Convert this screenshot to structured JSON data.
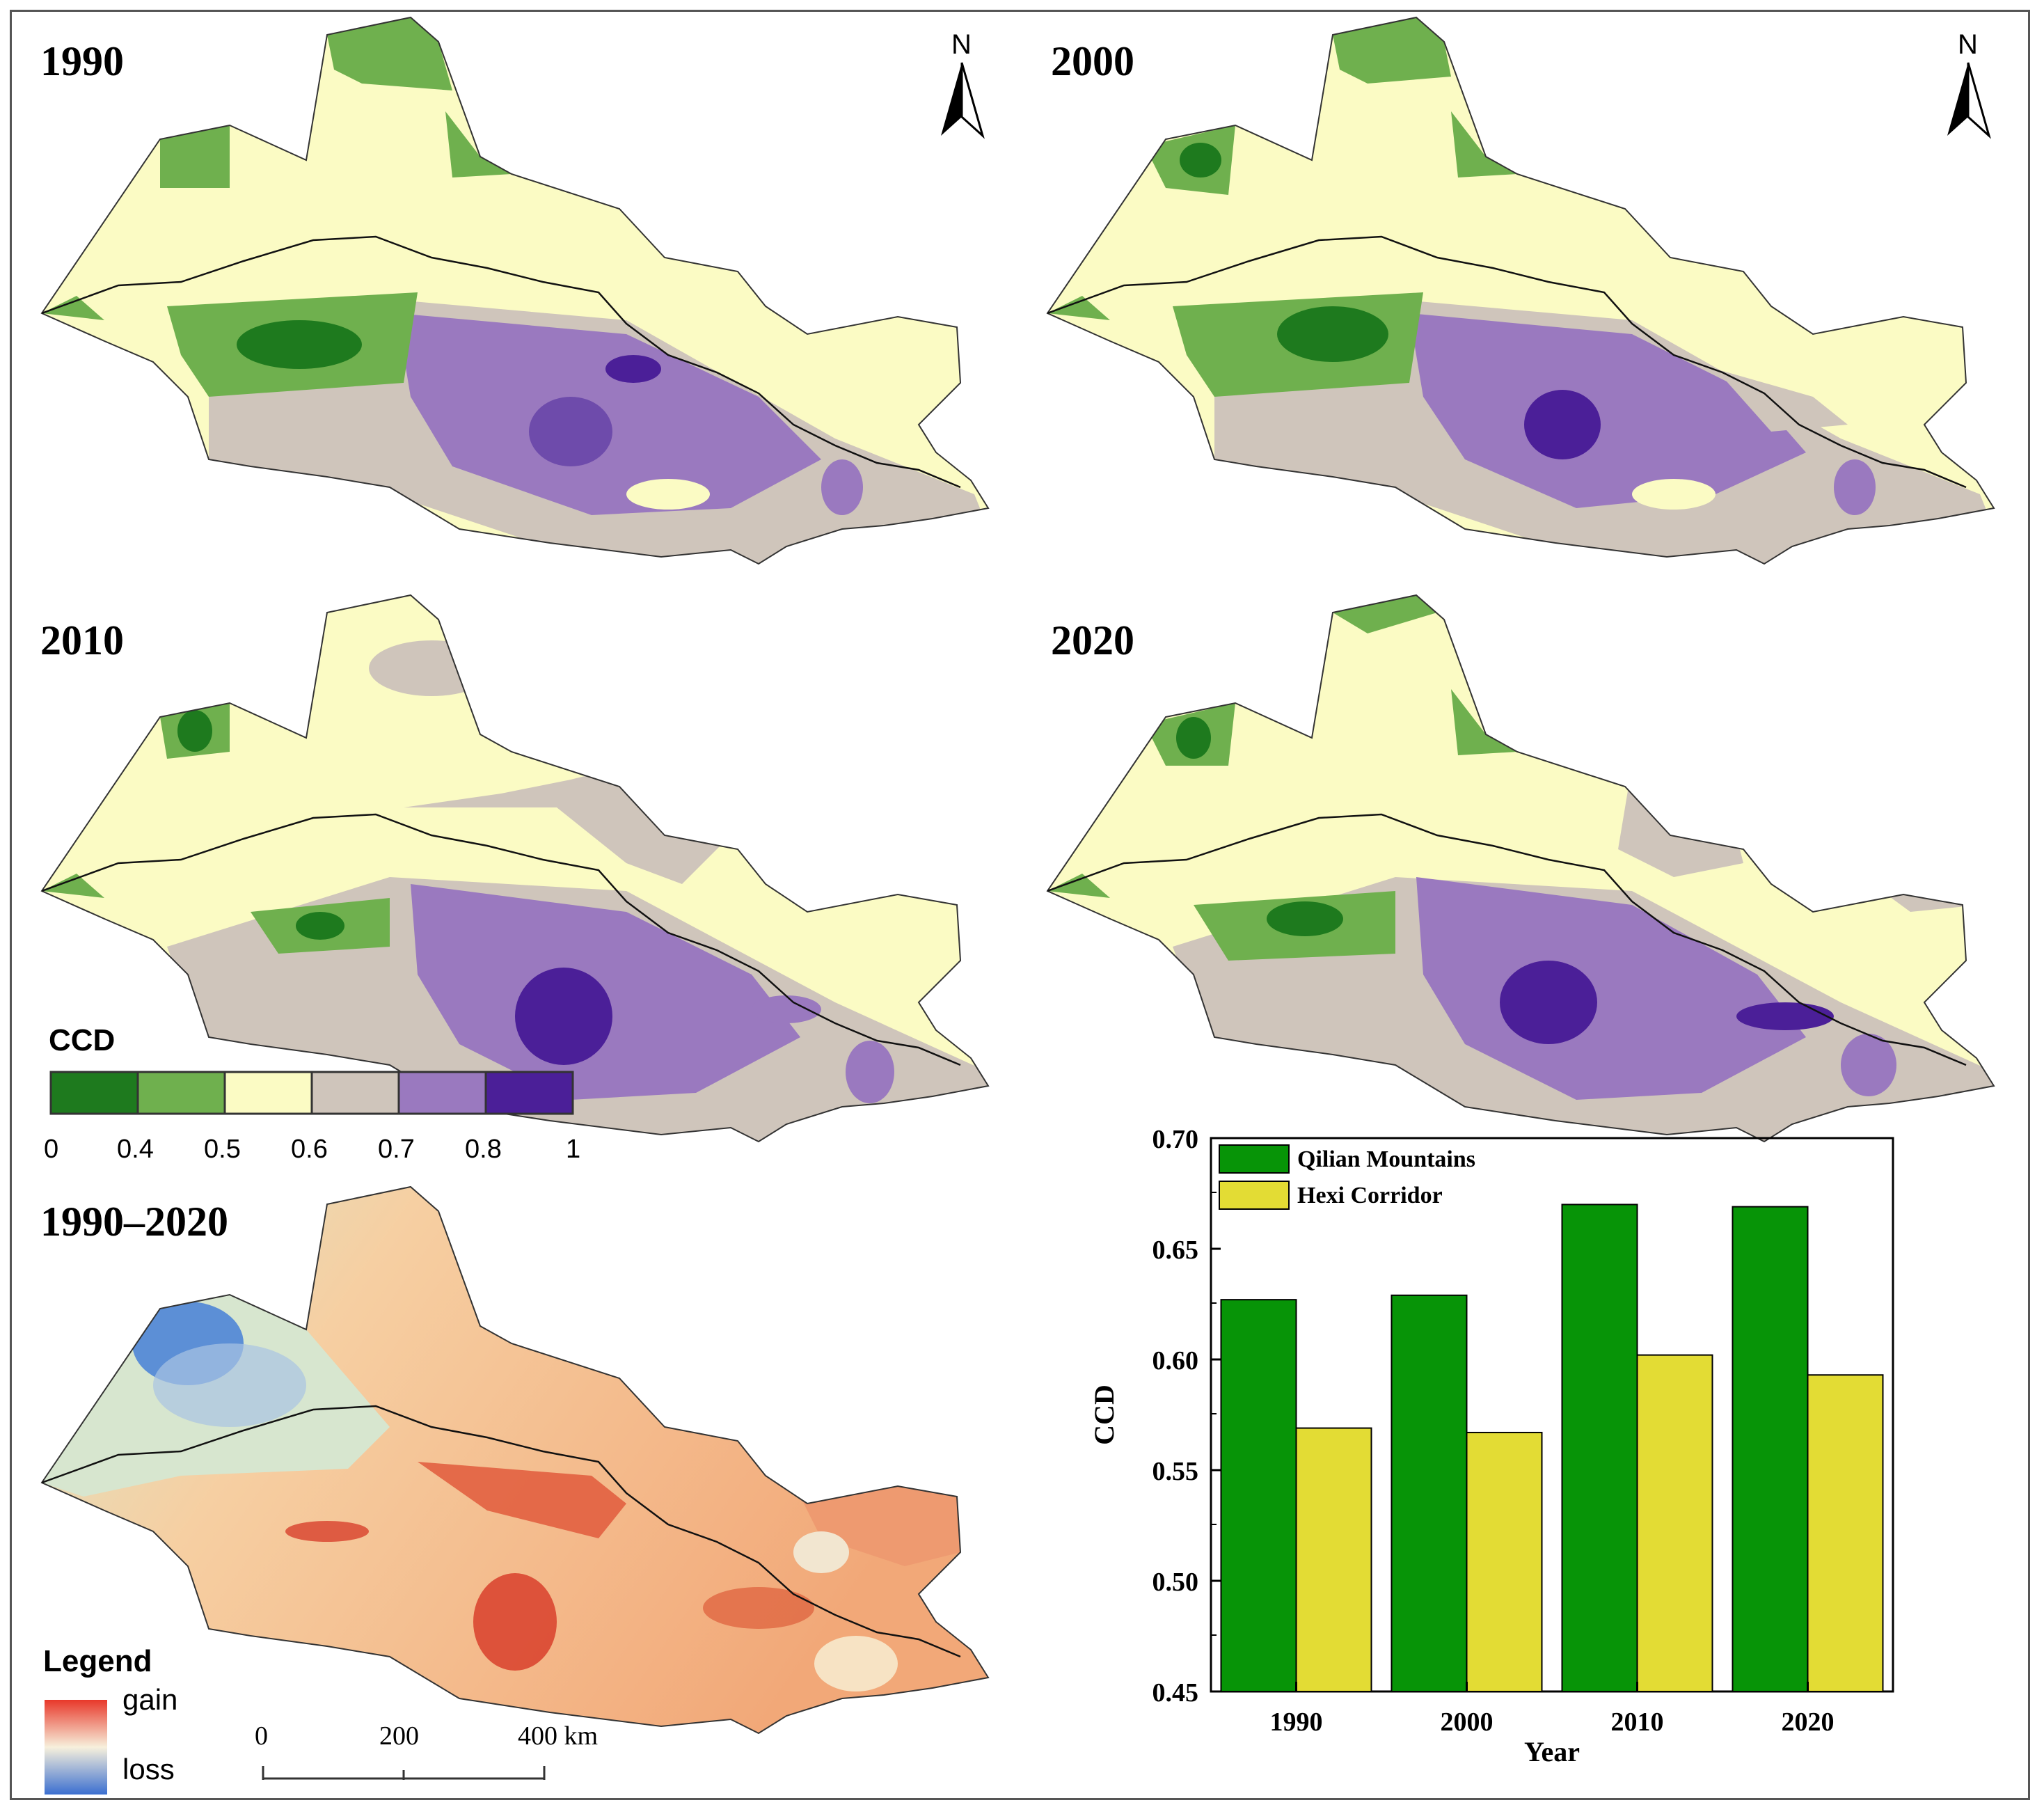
{
  "panels": {
    "p1990": {
      "label": "1990"
    },
    "p2000": {
      "label": "2000"
    },
    "p2010": {
      "label": "2010"
    },
    "p2020": {
      "label": "2020"
    },
    "change": {
      "label": "1990–2020"
    }
  },
  "north_arrow": {
    "letter": "N"
  },
  "ccd_legend": {
    "title": "CCD",
    "classes": [
      {
        "range": "0–0.4",
        "color": "#1e7a1e"
      },
      {
        "range": "0.4–0.5",
        "color": "#6fb04e"
      },
      {
        "range": "0.5–0.6",
        "color": "#fbfbc4"
      },
      {
        "range": "0.6–0.7",
        "color": "#cfc5bb"
      },
      {
        "range": "0.7–0.8",
        "color": "#9a79bf"
      },
      {
        "range": "0.8–1",
        "color": "#4b1f98"
      }
    ],
    "ticks": [
      "0",
      "0.4",
      "0.5",
      "0.6",
      "0.7",
      "0.8",
      "1"
    ]
  },
  "change_legend": {
    "title": "Legend",
    "gain_label": "gain",
    "loss_label": "loss",
    "gain_color": "#e8382a",
    "loss_color": "#3b6fd0"
  },
  "scale_bar": {
    "ticks": [
      "0",
      "200",
      "400 km"
    ]
  },
  "chart_data": {
    "type": "bar",
    "categories": [
      "1990",
      "2000",
      "2010",
      "2020"
    ],
    "series": [
      {
        "name": "Qilian Mountains",
        "values": [
          0.627,
          0.629,
          0.67,
          0.669
        ],
        "color": "#079407"
      },
      {
        "name": "Hexi Corridor",
        "values": [
          0.569,
          0.567,
          0.602,
          0.593
        ],
        "color": "#e3dc34"
      }
    ],
    "title": "",
    "xlabel": "Year",
    "ylabel": "CCD",
    "ylim": [
      0.45,
      0.7
    ],
    "yticks": [
      "0.45",
      "0.50",
      "0.55",
      "0.60",
      "0.65",
      "0.70"
    ],
    "legend_position": "top-left",
    "grid": false
  }
}
